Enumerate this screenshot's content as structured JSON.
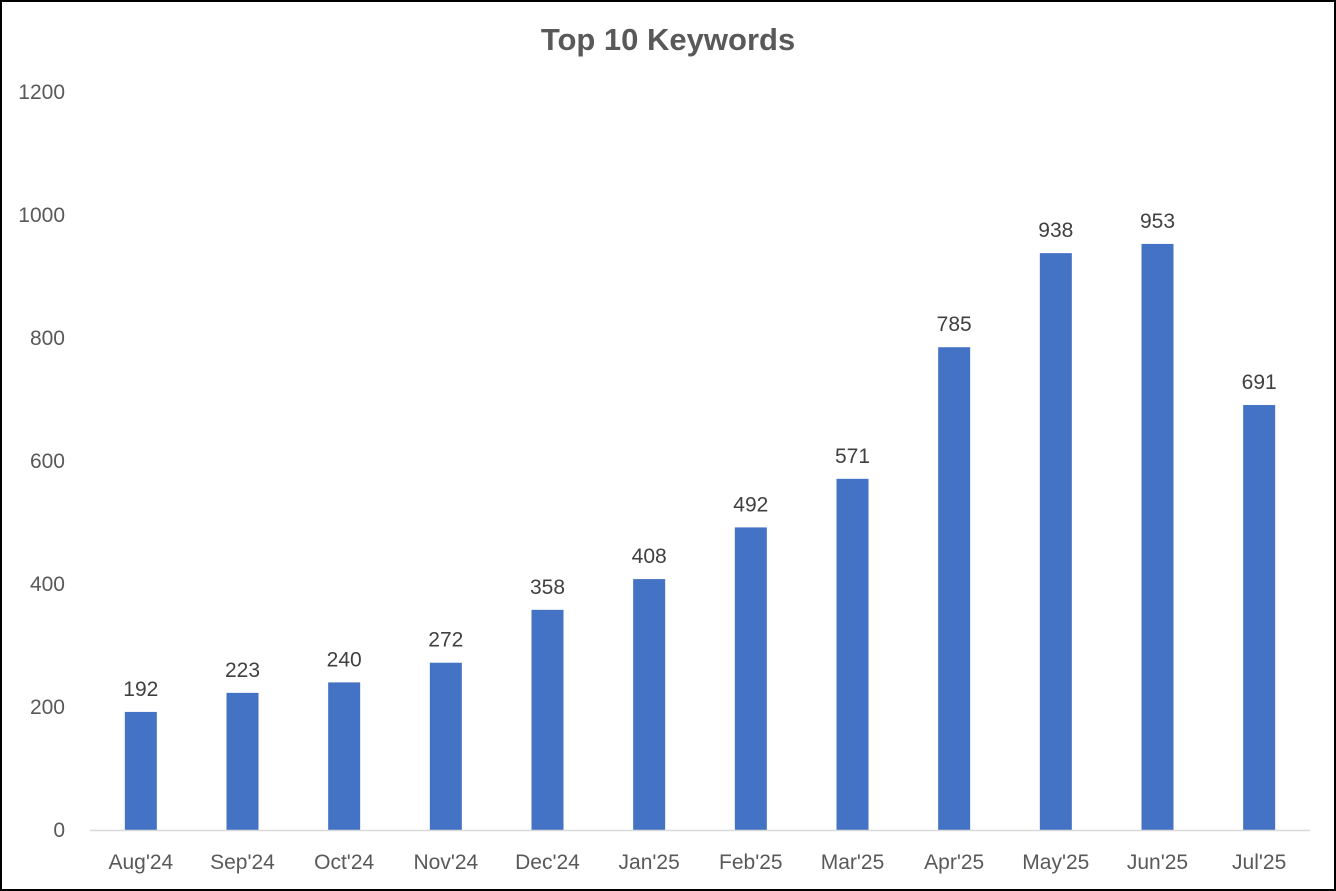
{
  "chart_data": {
    "type": "bar",
    "title": "Top 10 Keywords",
    "xlabel": "",
    "ylabel": "",
    "categories": [
      "Aug'24",
      "Sep'24",
      "Oct'24",
      "Nov'24",
      "Dec'24",
      "Jan'25",
      "Feb'25",
      "Mar'25",
      "Apr'25",
      "May'25",
      "Jun'25",
      "Jul'25"
    ],
    "values": [
      192,
      223,
      240,
      272,
      358,
      408,
      492,
      571,
      785,
      938,
      953,
      691
    ],
    "ylim": [
      0,
      1200
    ],
    "yticks": [
      0,
      200,
      400,
      600,
      800,
      1000,
      1200
    ],
    "data_labels": true,
    "grid": false,
    "legend": "none",
    "colors": {
      "bar": "#4472C4",
      "axis": "#D9D9D9"
    }
  }
}
